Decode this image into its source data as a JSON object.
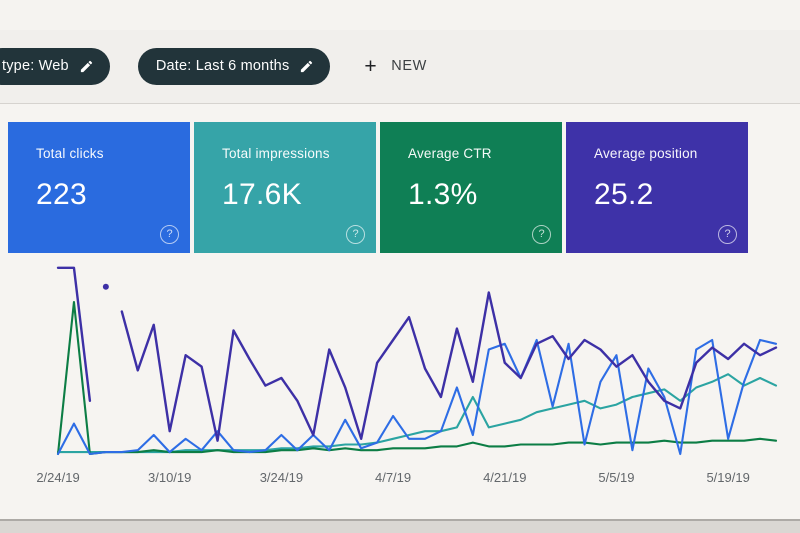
{
  "filter_bar": {
    "chips": [
      {
        "label": "type: Web"
      },
      {
        "label": "Date: Last 6 months"
      }
    ],
    "new_button": {
      "plus": "+",
      "label": "NEW"
    }
  },
  "cards": [
    {
      "title": "Total clicks",
      "value": "223",
      "color": "#2a6bdf"
    },
    {
      "title": "Total impressions",
      "value": "17.6K",
      "color": "#36a4a8"
    },
    {
      "title": "Average CTR",
      "value": "1.3%",
      "color": "#0f7f55"
    },
    {
      "title": "Average position",
      "value": "25.2",
      "color": "#3e32a8"
    }
  ],
  "help_icon": "?",
  "chart_data": {
    "type": "line",
    "x_tick_labels": [
      "2/24/19",
      "3/10/19",
      "3/24/19",
      "4/7/19",
      "4/21/19",
      "5/5/19",
      "5/19/19"
    ],
    "x_tick_indices": [
      0,
      7,
      14,
      21,
      28,
      35,
      42
    ],
    "num_points": 46,
    "y_unit": "percent of plot height (each metric drawn on its own hidden scale)",
    "grid": false,
    "legend_position": "none (line colors match metric cards)",
    "series": [
      {
        "name": "Impressions",
        "color": "#2ba4a2",
        "segments": [
          {
            "start": 0,
            "values": [
              1,
              1,
              1,
              1,
              1,
              1,
              1,
              1,
              2,
              2,
              2,
              2,
              2,
              2,
              3,
              3,
              4,
              4,
              5,
              5,
              6,
              8,
              10,
              12,
              12,
              14,
              30,
              14,
              16,
              18,
              22,
              24,
              26,
              28,
              24,
              26,
              30,
              32,
              34,
              28,
              35,
              38,
              42,
              36,
              40,
              36
            ]
          }
        ]
      },
      {
        "name": "CTR",
        "color": "#0c7d45",
        "segments": [
          {
            "start": 0,
            "values": [
              0,
              80,
              0,
              1,
              1,
              1,
              2,
              1,
              1,
              1,
              2,
              1,
              1,
              1,
              2,
              2,
              3,
              2,
              3,
              2,
              2,
              3,
              3,
              3,
              4,
              4,
              6,
              4,
              4,
              5,
              5,
              5,
              6,
              6,
              5,
              6,
              6,
              6,
              7,
              6,
              6,
              7,
              7,
              7,
              8,
              7
            ]
          }
        ]
      },
      {
        "name": "Clicks",
        "color": "#2e6de5",
        "segments": [
          {
            "start": 0,
            "values": [
              0,
              16,
              0,
              1,
              1,
              2,
              10,
              1,
              8,
              2,
              12,
              2,
              1,
              2,
              10,
              2,
              10,
              2,
              18,
              3,
              6,
              20,
              8,
              8,
              12,
              35,
              10,
              55,
              58,
              40,
              60,
              25,
              58,
              5,
              38,
              52,
              2,
              45,
              30,
              0,
              55,
              60,
              8,
              38,
              60,
              58
            ]
          }
        ]
      },
      {
        "name": "Position",
        "color": "#3d30a6",
        "segments": [
          {
            "start": 0,
            "values": [
              98,
              98,
              28
            ]
          },
          {
            "start": 3,
            "values": [
              88
            ]
          },
          {
            "start": 4,
            "values": [
              75,
              44,
              68,
              12,
              52,
              46,
              7,
              65,
              50,
              36,
              40,
              28,
              10,
              55,
              35,
              8,
              48,
              60,
              72,
              45,
              30,
              66,
              38,
              85,
              48,
              40,
              58,
              62,
              50,
              60,
              55,
              46,
              52,
              38,
              28,
              24,
              48,
              56,
              50,
              58,
              52,
              56
            ]
          }
        ]
      }
    ]
  }
}
